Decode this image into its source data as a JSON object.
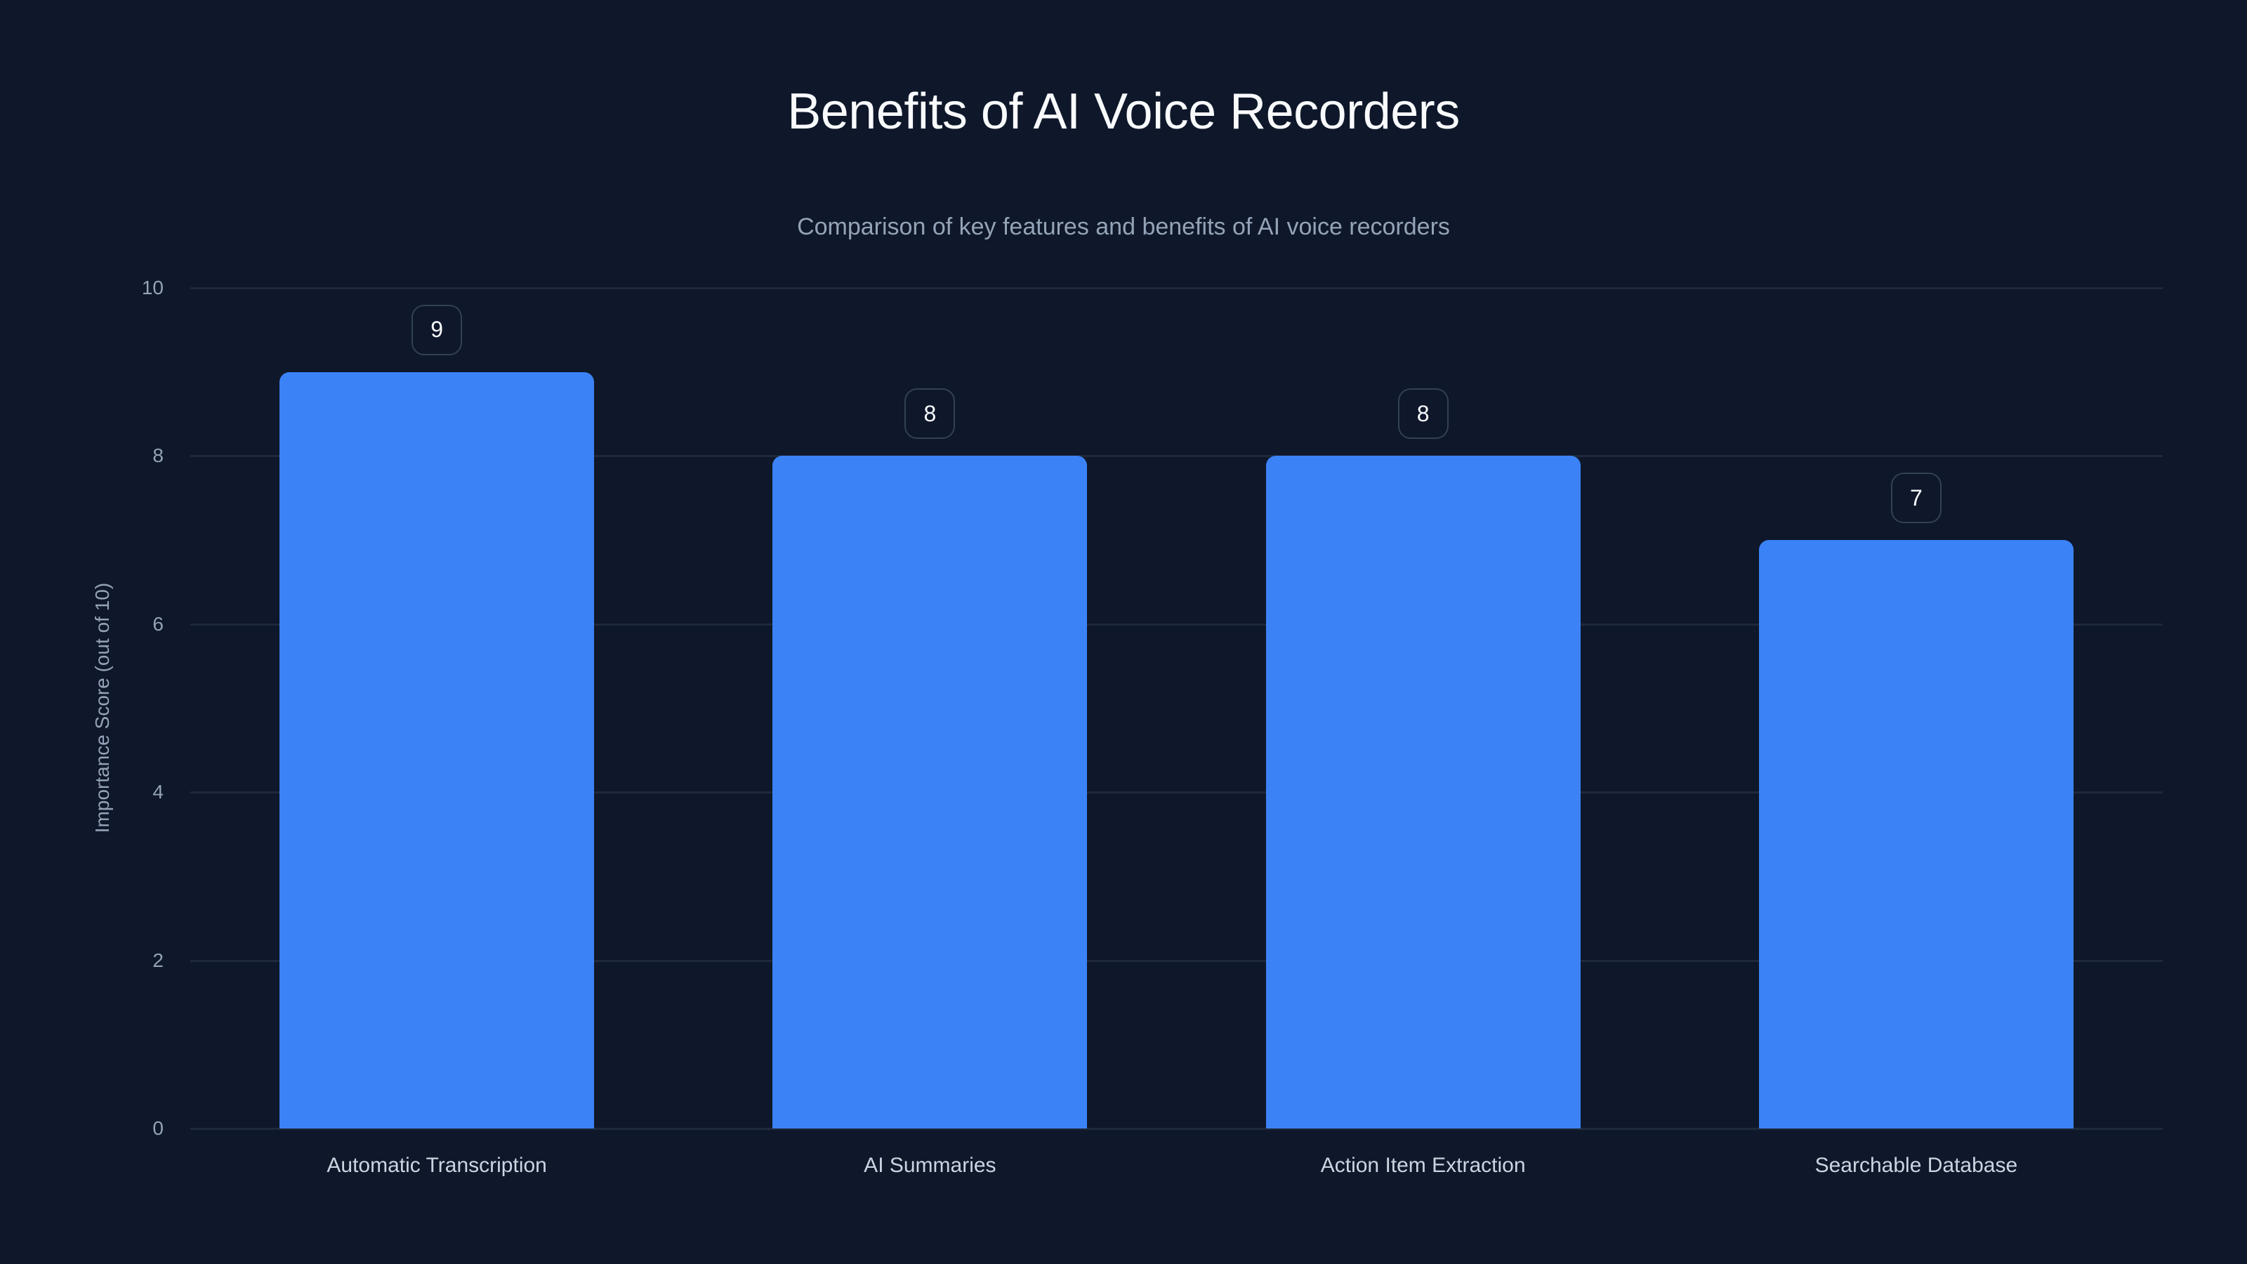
{
  "header": {
    "title": "Benefits of AI Voice Recorders",
    "subtitle": "Comparison of key features and benefits of AI voice recorders"
  },
  "axis": {
    "ylabel": "Importance Score (out of 10)",
    "yticks": [
      "0",
      "2",
      "4",
      "6",
      "8",
      "10"
    ]
  },
  "colors": {
    "background": "#0f172a",
    "bar": "#3b82f6",
    "grid": "#1e293b",
    "label_border": "#334155"
  },
  "chart_data": {
    "type": "bar",
    "title": "Benefits of AI Voice Recorders",
    "subtitle": "Comparison of key features and benefits of AI voice recorders",
    "xlabel": "",
    "ylabel": "Importance Score (out of 10)",
    "categories": [
      "Automatic Transcription",
      "AI Summaries",
      "Action Item Extraction",
      "Searchable Database"
    ],
    "values": [
      9,
      8,
      8,
      7
    ],
    "data_labels": [
      "9",
      "8",
      "8",
      "7"
    ],
    "ylim": [
      0,
      10
    ],
    "yticks": [
      0,
      2,
      4,
      6,
      8,
      10
    ],
    "grid": true,
    "legend": null
  }
}
